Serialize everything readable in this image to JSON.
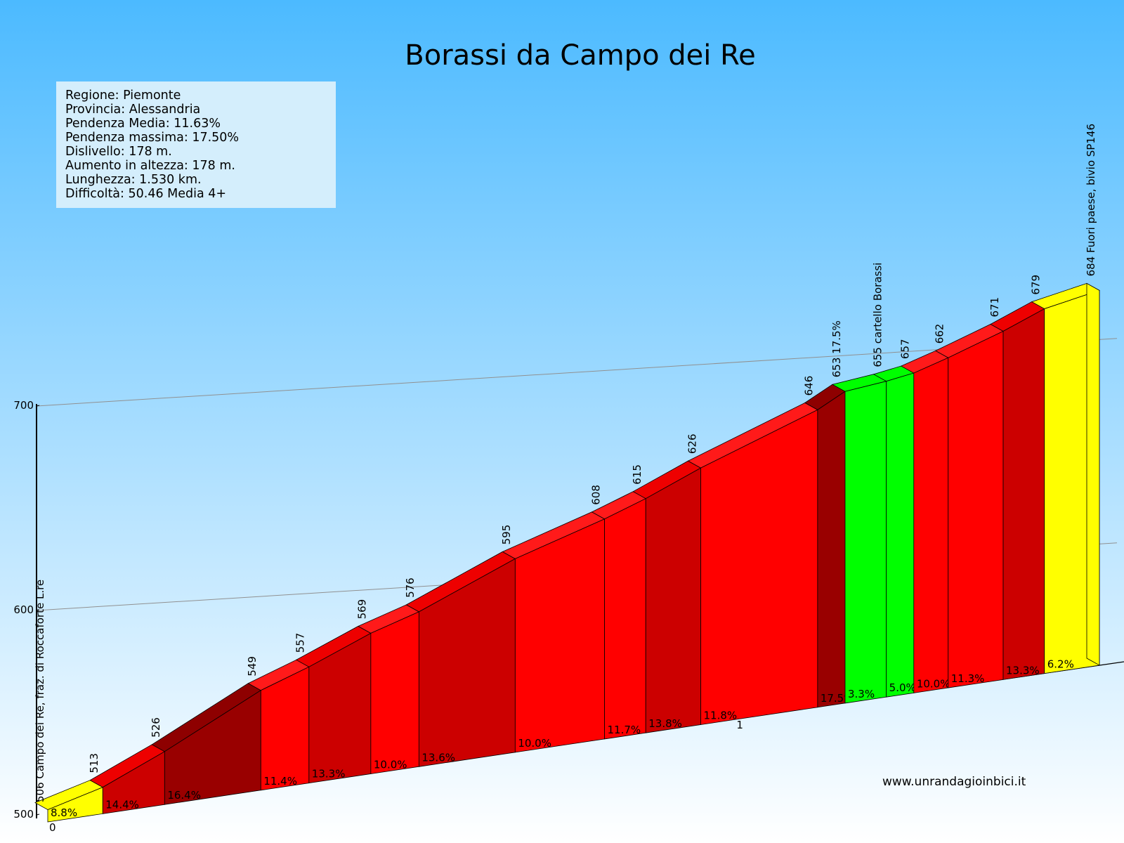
{
  "title": "Borassi da Campo dei Re",
  "info": [
    "Regione: Piemonte",
    "Provincia: Alessandria",
    "Pendenza Media: 11.63%",
    "Pendenza massima: 17.50%",
    "Dislivello:   178 m.",
    "Aumento in altezza:   178 m.",
    "Lunghezza:  1.530 km.",
    "Difficoltà: 50.46 Media 4+"
  ],
  "website": "www.unrandagioinbici.it",
  "colors": {
    "sky_top": "#4cbaff",
    "sky_bottom": "#ffffff",
    "yellow": "#ffff00",
    "green": "#00ff00",
    "red": "#ff0000",
    "dark_red": "#cc0000",
    "very_dark_red": "#990000"
  },
  "chart_data": {
    "type": "area",
    "title": "Borassi da Campo dei Re",
    "xlabel": "",
    "ylabel": "",
    "yticks": [
      "500",
      "600",
      "700"
    ],
    "xticks": [
      "0",
      "1"
    ],
    "ylim": [
      500,
      700
    ],
    "segments": [
      {
        "x0": 0.0,
        "x1": 0.08,
        "start": 506,
        "end": 513,
        "grade": "8.8%",
        "color": "yellow"
      },
      {
        "x0": 0.08,
        "x1": 0.17,
        "start": 513,
        "end": 526,
        "grade": "14.4%",
        "color": "dark_red"
      },
      {
        "x0": 0.17,
        "x1": 0.31,
        "start": 526,
        "end": 549,
        "grade": "16.4%",
        "color": "very_dark_red"
      },
      {
        "x0": 0.31,
        "x1": 0.38,
        "start": 549,
        "end": 557,
        "grade": "11.4%",
        "color": "red"
      },
      {
        "x0": 0.38,
        "x1": 0.47,
        "start": 557,
        "end": 569,
        "grade": "13.3%",
        "color": "dark_red"
      },
      {
        "x0": 0.47,
        "x1": 0.54,
        "start": 569,
        "end": 576,
        "grade": "10.0%",
        "color": "red"
      },
      {
        "x0": 0.54,
        "x1": 0.68,
        "start": 576,
        "end": 595,
        "grade": "13.6%",
        "color": "dark_red"
      },
      {
        "x0": 0.68,
        "x1": 0.81,
        "start": 595,
        "end": 608,
        "grade": "10.0%",
        "color": "red"
      },
      {
        "x0": 0.81,
        "x1": 0.87,
        "start": 608,
        "end": 615,
        "grade": "11.7%",
        "color": "red"
      },
      {
        "x0": 0.87,
        "x1": 0.95,
        "start": 615,
        "end": 626,
        "grade": "13.8%",
        "color": "dark_red"
      },
      {
        "x0": 0.95,
        "x1": 1.12,
        "start": 626,
        "end": 646,
        "grade": "11.8%",
        "color": "red"
      },
      {
        "x0": 1.12,
        "x1": 1.16,
        "start": 646,
        "end": 653,
        "grade": "17.5%",
        "color": "very_dark_red"
      },
      {
        "x0": 1.16,
        "x1": 1.22,
        "start": 653,
        "end": 655,
        "grade": "3.3%",
        "color": "green"
      },
      {
        "x0": 1.22,
        "x1": 1.26,
        "start": 655,
        "end": 657,
        "grade": "5.0%",
        "color": "green"
      },
      {
        "x0": 1.26,
        "x1": 1.31,
        "start": 657,
        "end": 662,
        "grade": "10.0%",
        "color": "red"
      },
      {
        "x0": 1.31,
        "x1": 1.39,
        "start": 662,
        "end": 671,
        "grade": "11.3%",
        "color": "red"
      },
      {
        "x0": 1.39,
        "x1": 1.45,
        "start": 671,
        "end": 679,
        "grade": "13.3%",
        "color": "dark_red"
      },
      {
        "x0": 1.45,
        "x1": 1.53,
        "start": 679,
        "end": 684,
        "grade": "6.2%",
        "color": "yellow"
      }
    ],
    "altitude_labels": [
      {
        "x": 0.0,
        "text": "506 Campo dei Re, fraz. di Roccaforte L.re"
      },
      {
        "x": 0.08,
        "text": "513"
      },
      {
        "x": 0.17,
        "text": "526"
      },
      {
        "x": 0.31,
        "text": "549"
      },
      {
        "x": 0.38,
        "text": "557"
      },
      {
        "x": 0.47,
        "text": "569"
      },
      {
        "x": 0.54,
        "text": "576"
      },
      {
        "x": 0.68,
        "text": "595"
      },
      {
        "x": 0.81,
        "text": "608"
      },
      {
        "x": 0.87,
        "text": "615"
      },
      {
        "x": 0.95,
        "text": "626"
      },
      {
        "x": 1.12,
        "text": "646"
      },
      {
        "x": 1.16,
        "text": "653 17.5%"
      },
      {
        "x": 1.22,
        "text": "655 cartello Borassi"
      },
      {
        "x": 1.26,
        "text": "657"
      },
      {
        "x": 1.31,
        "text": "662"
      },
      {
        "x": 1.39,
        "text": "671"
      },
      {
        "x": 1.45,
        "text": "679"
      },
      {
        "x": 1.53,
        "text": "684 Fuori paese, bivio SP146"
      }
    ]
  }
}
